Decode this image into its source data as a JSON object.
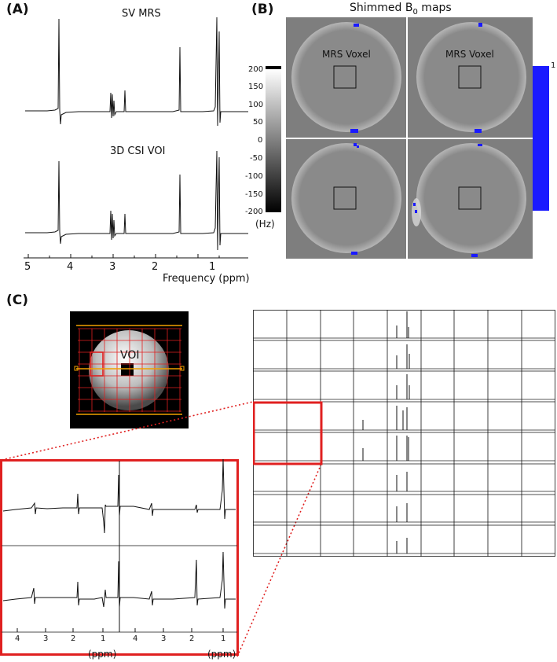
{
  "panels": {
    "a": {
      "label": "(A)",
      "top_title": "SV MRS",
      "bottom_title": "3D CSI VOI",
      "xlabel": "Frequency (ppm)",
      "ticks": [
        "5",
        "4",
        "3",
        "2",
        "1"
      ]
    },
    "b": {
      "label": "(B)",
      "title_prefix": "Shimmed B",
      "title_sub": "0",
      "title_suffix": " maps",
      "voxel_label": "MRS Voxel",
      "colorbar_ticks": [
        "200",
        "150",
        "100",
        "50",
        "0",
        "-50",
        "-100",
        "-150",
        "-200"
      ],
      "colorbar_unit": "(Hz)",
      "mask_bar_tick": "1",
      "mask_color": "#1a1aff"
    },
    "c": {
      "label": "(C)",
      "voi_label": "VOI",
      "zoom_ticks_left": [
        "4",
        "3",
        "2",
        "1"
      ],
      "zoom_ticks_right": [
        "4",
        "3",
        "2",
        "1"
      ],
      "ppm_left": "(ppm)",
      "ppm_right": "(ppm)",
      "highlight_color": "#e02020",
      "voi_line_color": "#f0a000"
    }
  }
}
